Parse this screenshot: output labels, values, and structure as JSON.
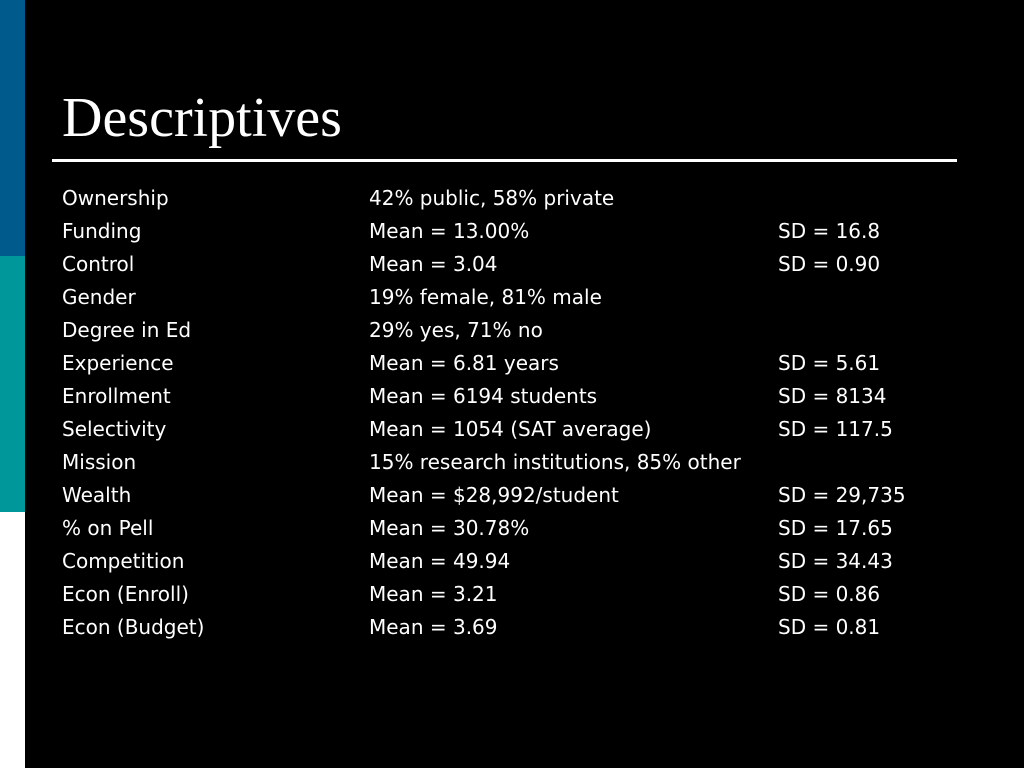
{
  "colors": {
    "background": "#000000",
    "text": "#ffffff",
    "bar_blue": "#005a8c",
    "bar_teal": "#00979a",
    "bar_white": "#ffffff"
  },
  "title": "Descriptives",
  "rows": [
    {
      "label": "Ownership",
      "value": "42% public, 58% private",
      "sd": ""
    },
    {
      "label": "Funding",
      "value": "Mean = 13.00%",
      "sd": "SD = 16.8"
    },
    {
      "label": "Control",
      "value": "Mean = 3.04",
      "sd": "SD = 0.90"
    },
    {
      "label": "Gender",
      "value": "19% female, 81% male",
      "sd": ""
    },
    {
      "label": "Degree in Ed",
      "value": "29% yes, 71% no",
      "sd": ""
    },
    {
      "label": "Experience",
      "value": "Mean = 6.81 years",
      "sd": "SD = 5.61"
    },
    {
      "label": "Enrollment",
      "value": "Mean = 6194 students",
      "sd": "SD = 8134"
    },
    {
      "label": "Selectivity",
      "value": "Mean = 1054 (SAT average)",
      "sd": "SD = 117.5"
    },
    {
      "label": "Mission",
      "value": "15% research institutions, 85% other",
      "sd": ""
    },
    {
      "label": "Wealth",
      "value": "Mean = $28,992/student",
      "sd": "SD = 29,735"
    },
    {
      "label": "% on Pell",
      "value": "Mean = 30.78%",
      "sd": "SD = 17.65"
    },
    {
      "label": "Competition",
      "value": "Mean = 49.94",
      "sd": "SD = 34.43"
    },
    {
      "label": "Econ (Enroll)",
      "value": "Mean = 3.21",
      "sd": "SD = 0.86"
    },
    {
      "label": "Econ (Budget)",
      "value": "Mean = 3.69",
      "sd": "SD = 0.81"
    }
  ]
}
